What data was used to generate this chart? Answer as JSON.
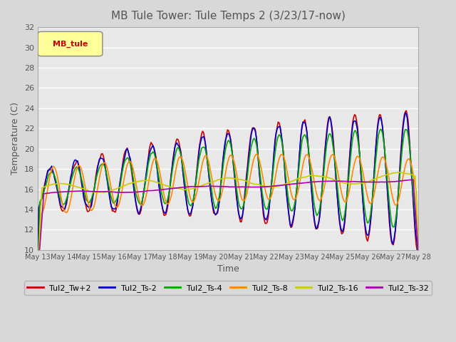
{
  "title": "MB Tule Tower: Tule Temps 2 (3/23/17-now)",
  "xlabel": "Time",
  "ylabel": "Temperature (C)",
  "ylim": [
    10,
    32
  ],
  "yticks": [
    10,
    12,
    14,
    16,
    18,
    20,
    22,
    24,
    26,
    28,
    30,
    32
  ],
  "xtick_labels": [
    "May 13",
    "May 14",
    "May 15",
    "May 16",
    "May 17",
    "May 18",
    "May 19",
    "May 20",
    "May 21",
    "May 22",
    "May 23",
    "May 24",
    "May 25",
    "May 26",
    "May 27",
    "May 28"
  ],
  "legend_label": "MB_tule",
  "series_colors": {
    "Tul2_Tw+2": "#cc0000",
    "Tul2_Ts-2": "#0000cc",
    "Tul2_Ts-4": "#00aa00",
    "Tul2_Ts-8": "#ff8800",
    "Tul2_Ts-16": "#cccc00",
    "Tul2_Ts-32": "#aa00aa"
  },
  "background_color": "#e8e8e8",
  "plot_bg_color": "#e8e8e8",
  "title_color": "#555555",
  "grid_color": "#ffffff"
}
